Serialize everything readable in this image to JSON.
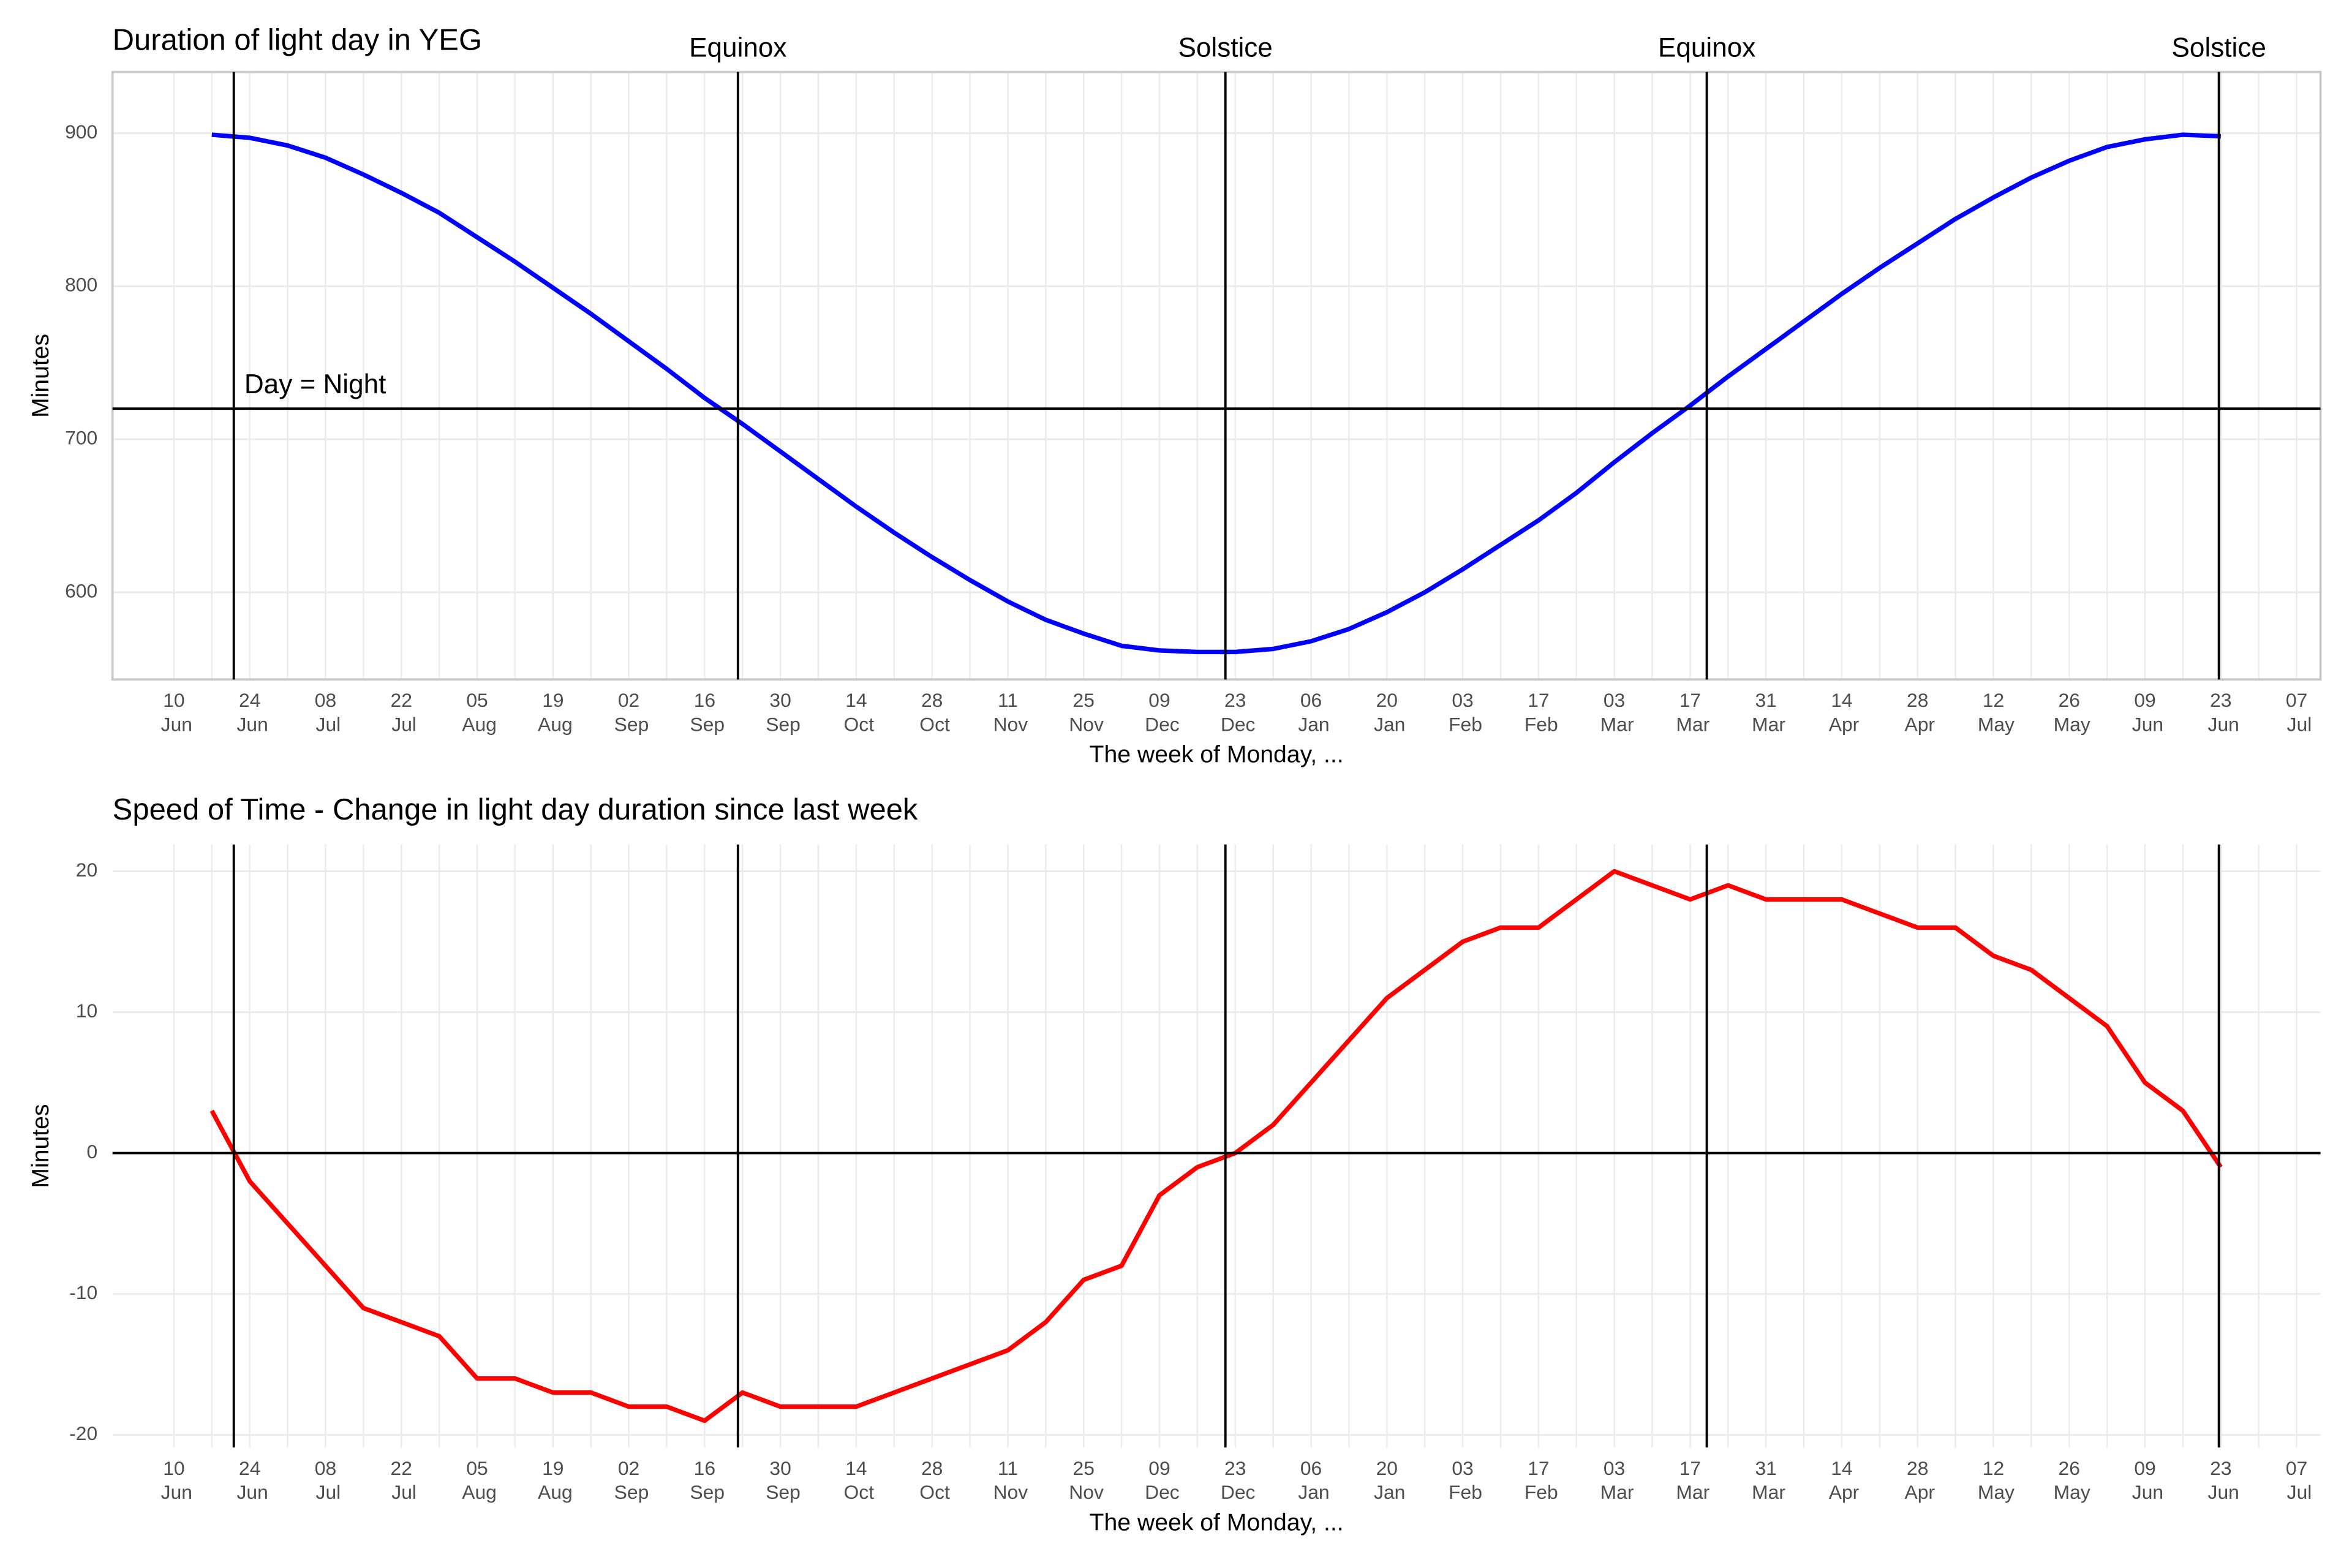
{
  "chart_data": [
    {
      "type": "line",
      "title": "Duration of light day in YEG",
      "xlabel": "The week of Monday, ...",
      "ylabel": "Minutes",
      "categories": [
        "10 Jun",
        null,
        "24 Jun",
        null,
        "08 Jul",
        null,
        "22 Jul",
        null,
        "05 Aug",
        null,
        "19 Aug",
        null,
        "02 Sep",
        null,
        "16 Sep",
        null,
        "30 Sep",
        null,
        "14 Oct",
        null,
        "28 Oct",
        null,
        "11 Nov",
        null,
        "25 Nov",
        null,
        "09 Dec",
        null,
        "23 Dec",
        null,
        "06 Jan",
        null,
        "20 Jan",
        null,
        "03 Feb",
        null,
        "17 Feb",
        null,
        "03 Mar",
        null,
        "17 Mar",
        null,
        "31 Mar",
        null,
        "14 Apr",
        null,
        "28 Apr",
        null,
        "12 May",
        null,
        "26 May",
        null,
        "09 Jun",
        null,
        "23 Jun",
        null,
        "07 Jul"
      ],
      "values": [
        null,
        899,
        897,
        892,
        884,
        873,
        861,
        848,
        832,
        816,
        799,
        782,
        764,
        746,
        727,
        710,
        692,
        674,
        656,
        639,
        623,
        608,
        594,
        582,
        573,
        565,
        562,
        561,
        561,
        563,
        568,
        576,
        587,
        600,
        615,
        631,
        647,
        665,
        685,
        704,
        722,
        741,
        759,
        777,
        795,
        812,
        828,
        844,
        858,
        871,
        882,
        891,
        896,
        899,
        898,
        null,
        null
      ],
      "color": "#0000ff",
      "xlim": [
        -1.62,
        56.63
      ],
      "ylim": [
        543,
        940
      ],
      "yticks": [
        600,
        700,
        800,
        900
      ],
      "grid": true,
      "panel_border": true,
      "vlines": [
        {
          "x": 1.58
        },
        {
          "x": 14.88,
          "label": "Equinox"
        },
        {
          "x": 27.74,
          "label": "Solstice"
        },
        {
          "x": 40.44,
          "label": "Equinox"
        },
        {
          "x": 53.95,
          "label": "Solstice"
        }
      ],
      "hlines": [
        {
          "y": 720,
          "label": "Day = Night"
        }
      ]
    },
    {
      "type": "line",
      "title": "Speed of Time - Change in light day duration since last week",
      "xlabel": "The week of Monday, ...",
      "ylabel": "Minutes",
      "categories": [
        "10 Jun",
        null,
        "24 Jun",
        null,
        "08 Jul",
        null,
        "22 Jul",
        null,
        "05 Aug",
        null,
        "19 Aug",
        null,
        "02 Sep",
        null,
        "16 Sep",
        null,
        "30 Sep",
        null,
        "14 Oct",
        null,
        "28 Oct",
        null,
        "11 Nov",
        null,
        "25 Nov",
        null,
        "09 Dec",
        null,
        "23 Dec",
        null,
        "06 Jan",
        null,
        "20 Jan",
        null,
        "03 Feb",
        null,
        "17 Feb",
        null,
        "03 Mar",
        null,
        "17 Mar",
        null,
        "31 Mar",
        null,
        "14 Apr",
        null,
        "28 Apr",
        null,
        "12 May",
        null,
        "26 May",
        null,
        "09 Jun",
        null,
        "23 Jun",
        null,
        "07 Jul"
      ],
      "values": [
        null,
        3,
        -2,
        -5,
        -8,
        -11,
        -12,
        -13,
        -16,
        -16,
        -17,
        -17,
        -18,
        -18,
        -19,
        -17,
        -18,
        -18,
        -18,
        -17,
        -16,
        -15,
        -14,
        -12,
        -9,
        -8,
        -3,
        -1,
        0,
        2,
        5,
        8,
        11,
        13,
        15,
        16,
        16,
        18,
        20,
        19,
        18,
        19,
        18,
        18,
        18,
        17,
        16,
        16,
        14,
        13,
        11,
        9,
        5,
        3,
        -1,
        null,
        null
      ],
      "color": "#ff0000",
      "xlim": [
        -1.62,
        56.63
      ],
      "ylim": [
        -20.9,
        21.9
      ],
      "yticks": [
        -20,
        -10,
        0,
        10,
        20
      ],
      "grid": true,
      "panel_border": false,
      "vlines": [
        {
          "x": 1.58
        },
        {
          "x": 14.88
        },
        {
          "x": 27.74
        },
        {
          "x": 40.44
        },
        {
          "x": 53.95
        }
      ],
      "hlines": [
        {
          "y": 0
        }
      ]
    }
  ]
}
